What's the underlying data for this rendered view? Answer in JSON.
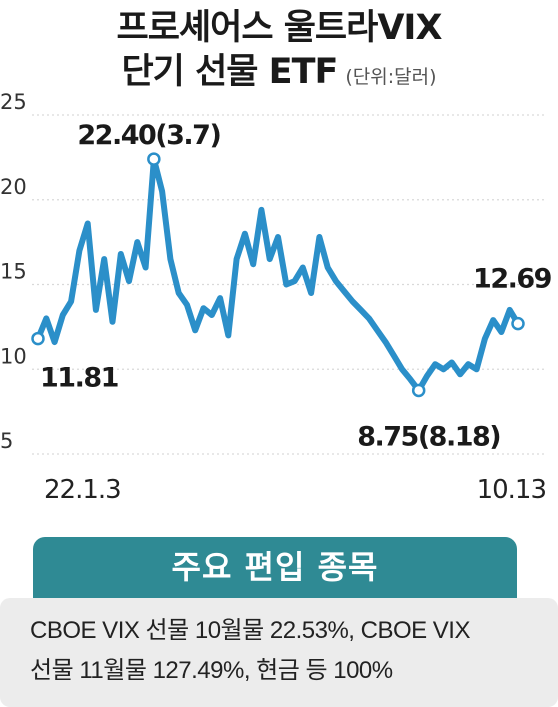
{
  "title": {
    "line1": "프로셰어스 울트라VIX",
    "line2": "단기 선물 ETF",
    "unit": "(단위:달러)"
  },
  "holdings": {
    "header": "주요 편입 종목",
    "line1": "CBOE VIX 선물 10월물 22.53%, CBOE VIX",
    "line2": "선물 11월물 127.49%, 현금 등 100%"
  },
  "colors": {
    "line": "#2b8fc9",
    "accent": "#2f8a94",
    "panel_bg": "#ececec"
  },
  "chart_data": {
    "type": "line",
    "y_ticks": [
      "25",
      "20",
      "15",
      "10",
      "5"
    ],
    "ylim": [
      5,
      25
    ],
    "x_ticks": [
      {
        "label": "22.1.3",
        "index": 0
      },
      {
        "label": "10.13",
        "index": 58
      }
    ],
    "annotations": [
      {
        "text": "22.40(3.7)",
        "index": 14
      },
      {
        "text": "11.81",
        "index": 0
      },
      {
        "text": "8.75(8.18)",
        "index": 46
      },
      {
        "text": "12.69",
        "index": 58
      }
    ],
    "series": [
      {
        "values": [
          11.81,
          13.0,
          11.6,
          13.2,
          14.0,
          17.0,
          18.6,
          13.5,
          16.5,
          12.8,
          16.8,
          15.2,
          17.5,
          16.0,
          22.4,
          20.5,
          16.5,
          14.5,
          13.8,
          12.3,
          13.6,
          13.2,
          14.2,
          12.0,
          16.5,
          18.0,
          16.2,
          19.4,
          16.5,
          17.8,
          15.0,
          15.2,
          16.0,
          14.5,
          17.8,
          16.0,
          15.2,
          14.6,
          14.0,
          13.5,
          13.0,
          12.3,
          11.6,
          10.8,
          10.0,
          9.4,
          8.75,
          9.6,
          10.3,
          10.0,
          10.4,
          9.7,
          10.3,
          10.0,
          11.8,
          12.9,
          12.2,
          13.5,
          12.69
        ]
      }
    ]
  }
}
